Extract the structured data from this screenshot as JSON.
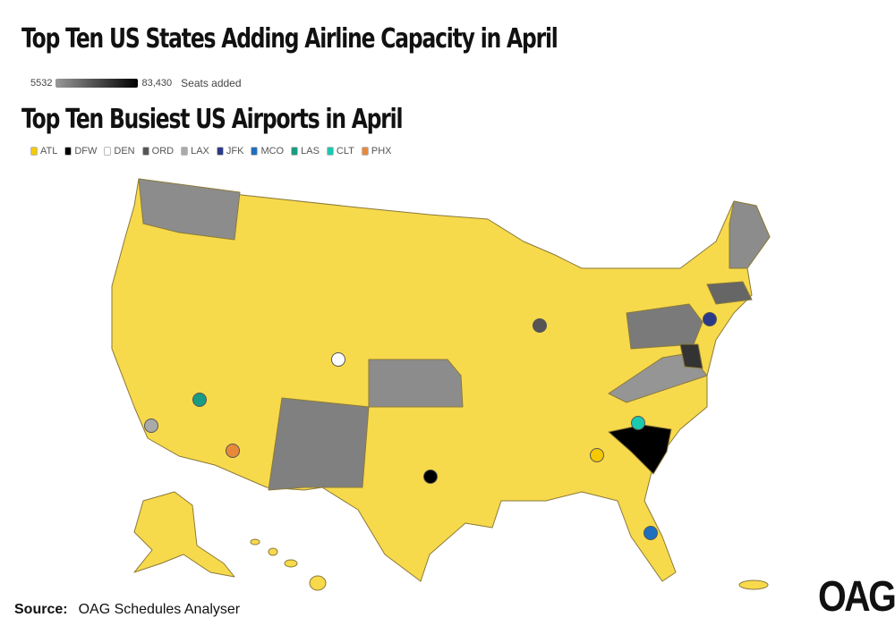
{
  "header": {
    "title": "Top Ten US States Adding Airline Capacity in April",
    "subtitle": "Top Ten Busiest US Airports in April"
  },
  "capacity_scale": {
    "min_label": "5532",
    "max_label": "83,430",
    "label": "Seats added"
  },
  "airports": [
    {
      "code": "ATL",
      "color": "#f5c800"
    },
    {
      "code": "DFW",
      "color": "#000000"
    },
    {
      "code": "DEN",
      "color": "#ffffff"
    },
    {
      "code": "ORD",
      "color": "#555555"
    },
    {
      "code": "LAX",
      "color": "#aaaaaa"
    },
    {
      "code": "JFK",
      "color": "#2b3a86"
    },
    {
      "code": "MCO",
      "color": "#1f6fbf"
    },
    {
      "code": "LAS",
      "color": "#1a9c84"
    },
    {
      "code": "CLT",
      "color": "#19c9b0"
    },
    {
      "code": "PHX",
      "color": "#e8893a"
    }
  ],
  "source": {
    "label": "Source:",
    "text": "OAG Schedules Analyser"
  },
  "logo": "OAG"
}
